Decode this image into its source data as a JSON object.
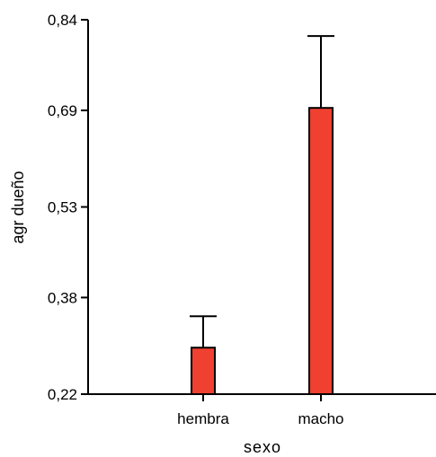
{
  "chart_data": {
    "type": "bar",
    "title": "",
    "xlabel": "sexo",
    "ylabel": "agr dueño",
    "categories": [
      "hembra",
      "macho"
    ],
    "values": [
      0.297,
      0.694
    ],
    "error_upper": [
      0.349,
      0.813
    ],
    "ylim": [
      0.22,
      0.84
    ],
    "yticks": [
      0.22,
      0.38,
      0.53,
      0.69,
      0.84
    ],
    "ytick_labels": [
      "0,22",
      "0,38",
      "0,53",
      "0,69",
      "0,84"
    ],
    "bar_color": "#f04030",
    "grid": false
  }
}
